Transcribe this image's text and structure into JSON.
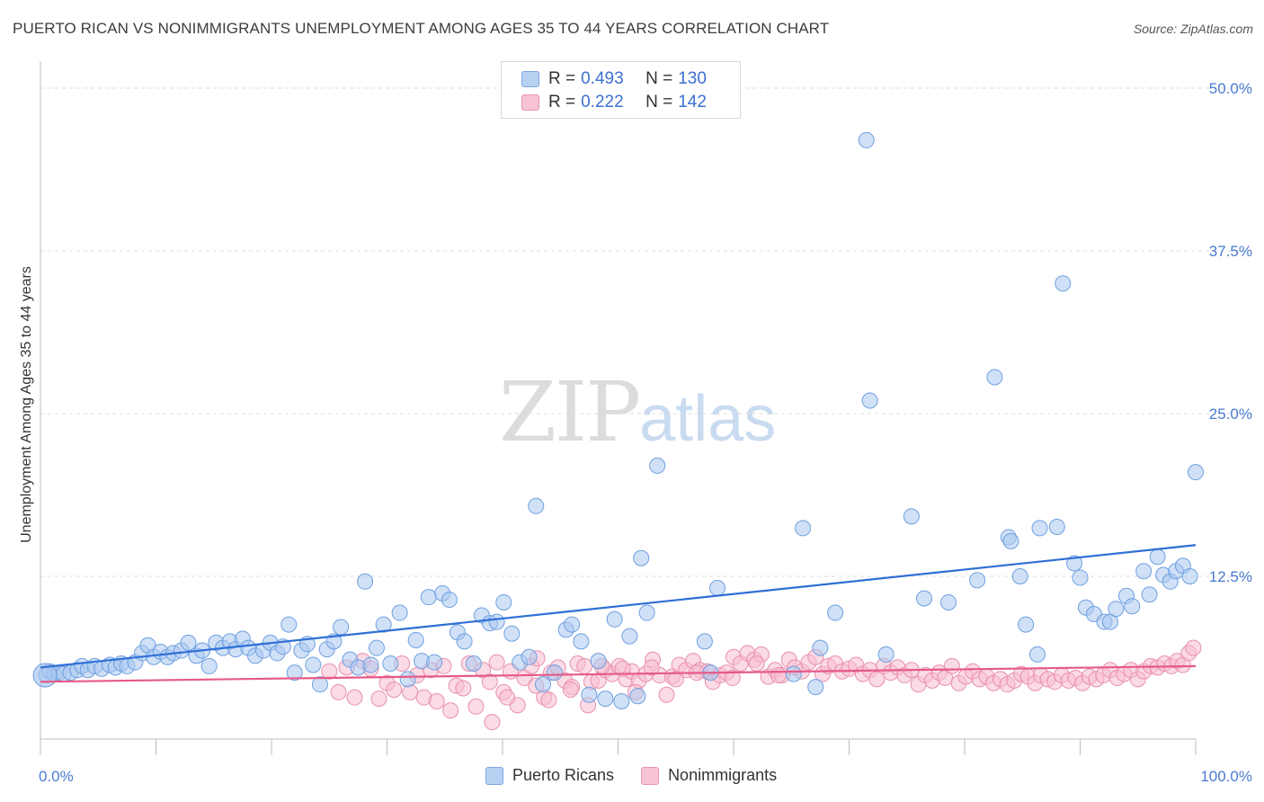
{
  "title": "PUERTO RICAN VS NONIMMIGRANTS UNEMPLOYMENT AMONG AGES 35 TO 44 YEARS CORRELATION CHART",
  "source": "Source: ZipAtlas.com",
  "watermark": {
    "zip": "ZIP",
    "atlas": "atlas"
  },
  "legend": {
    "r_label": "R =",
    "n_label": "N =",
    "items": [
      {
        "name": "Puerto Ricans",
        "r": "0.493",
        "n": "130",
        "fill": "#b8d1f3",
        "stroke": "#7ea6e0"
      },
      {
        "name": "Nonimmigrants",
        "r": "0.222",
        "n": "142",
        "fill": "#f8c3d3",
        "stroke": "#e995b0"
      }
    ]
  },
  "chart_data": {
    "type": "scatter",
    "title": "PUERTO RICAN VS NONIMMIGRANTS UNEMPLOYMENT AMONG AGES 35 TO 44 YEARS CORRELATION CHART",
    "xlabel": "",
    "ylabel": "Unemployment Among Ages 35 to 44 years",
    "xlim": [
      0,
      100
    ],
    "ylim": [
      0,
      50
    ],
    "x_tick_labels": [
      "0.0%",
      "100.0%"
    ],
    "y_ticks": [
      12.5,
      25.0,
      37.5,
      50.0
    ],
    "y_tick_labels": [
      "12.5%",
      "25.0%",
      "37.5%",
      "50.0%"
    ],
    "grid": true,
    "legend_position": "top-center",
    "series": [
      {
        "name": "Puerto Ricans",
        "color": "#6a9ee6",
        "trend": [
          [
            0,
            5.5
          ],
          [
            100,
            14.9
          ]
        ],
        "points": [
          [
            0.5,
            4.9
          ],
          [
            0.8,
            5.2
          ],
          [
            1.2,
            5.0
          ],
          [
            1.6,
            5.1
          ],
          [
            2.0,
            5.0
          ],
          [
            2.6,
            5.1
          ],
          [
            3.2,
            5.3
          ],
          [
            3.6,
            5.6
          ],
          [
            4.1,
            5.3
          ],
          [
            4.7,
            5.6
          ],
          [
            5.3,
            5.4
          ],
          [
            6.0,
            5.7
          ],
          [
            6.5,
            5.5
          ],
          [
            7.0,
            5.8
          ],
          [
            7.5,
            5.6
          ],
          [
            8.2,
            5.9
          ],
          [
            8.8,
            6.6
          ],
          [
            9.3,
            7.2
          ],
          [
            9.8,
            6.3
          ],
          [
            10.4,
            6.7
          ],
          [
            11.0,
            6.3
          ],
          [
            11.5,
            6.6
          ],
          [
            12.2,
            6.8
          ],
          [
            12.8,
            7.4
          ],
          [
            13.5,
            6.4
          ],
          [
            14.0,
            6.8
          ],
          [
            14.6,
            5.6
          ],
          [
            15.2,
            7.4
          ],
          [
            15.8,
            7.0
          ],
          [
            16.4,
            7.5
          ],
          [
            16.9,
            6.9
          ],
          [
            17.5,
            7.7
          ],
          [
            18.0,
            7.0
          ],
          [
            18.6,
            6.4
          ],
          [
            19.3,
            6.8
          ],
          [
            19.9,
            7.4
          ],
          [
            20.5,
            6.6
          ],
          [
            21.0,
            7.1
          ],
          [
            21.5,
            8.8
          ],
          [
            22.0,
            5.1
          ],
          [
            22.6,
            6.8
          ],
          [
            23.1,
            7.3
          ],
          [
            23.6,
            5.7
          ],
          [
            24.2,
            4.2
          ],
          [
            24.8,
            6.9
          ],
          [
            25.4,
            7.5
          ],
          [
            26.0,
            8.6
          ],
          [
            26.8,
            6.1
          ],
          [
            27.5,
            5.5
          ],
          [
            28.1,
            12.1
          ],
          [
            28.6,
            5.7
          ],
          [
            29.1,
            7.0
          ],
          [
            29.7,
            8.8
          ],
          [
            30.3,
            5.8
          ],
          [
            31.1,
            9.7
          ],
          [
            31.8,
            4.6
          ],
          [
            32.5,
            7.6
          ],
          [
            33.0,
            6.0
          ],
          [
            33.6,
            10.9
          ],
          [
            34.1,
            5.9
          ],
          [
            34.8,
            11.2
          ],
          [
            35.4,
            10.7
          ],
          [
            36.1,
            8.2
          ],
          [
            36.7,
            7.5
          ],
          [
            37.5,
            5.8
          ],
          [
            38.2,
            9.5
          ],
          [
            38.9,
            8.9
          ],
          [
            39.5,
            9.0
          ],
          [
            40.1,
            10.5
          ],
          [
            40.8,
            8.1
          ],
          [
            41.5,
            5.9
          ],
          [
            42.3,
            6.3
          ],
          [
            42.9,
            17.9
          ],
          [
            43.5,
            4.2
          ],
          [
            44.5,
            5.1
          ],
          [
            45.5,
            8.4
          ],
          [
            46.0,
            8.8
          ],
          [
            46.8,
            7.5
          ],
          [
            47.5,
            3.4
          ],
          [
            48.3,
            6.0
          ],
          [
            48.9,
            3.1
          ],
          [
            49.7,
            9.2
          ],
          [
            50.3,
            2.9
          ],
          [
            51.0,
            7.9
          ],
          [
            51.7,
            3.3
          ],
          [
            52.0,
            13.9
          ],
          [
            52.5,
            9.7
          ],
          [
            53.4,
            21.0
          ],
          [
            57.5,
            7.5
          ],
          [
            58.0,
            5.1
          ],
          [
            58.6,
            11.6
          ],
          [
            65.2,
            5.0
          ],
          [
            66.0,
            16.2
          ],
          [
            67.1,
            4.0
          ],
          [
            67.5,
            7.0
          ],
          [
            68.8,
            9.7
          ],
          [
            71.5,
            46.0
          ],
          [
            71.8,
            26.0
          ],
          [
            73.2,
            6.5
          ],
          [
            75.4,
            17.1
          ],
          [
            76.5,
            10.8
          ],
          [
            78.6,
            10.5
          ],
          [
            81.1,
            12.2
          ],
          [
            82.6,
            27.8
          ],
          [
            83.8,
            15.5
          ],
          [
            84.0,
            15.2
          ],
          [
            84.8,
            12.5
          ],
          [
            85.3,
            8.8
          ],
          [
            86.3,
            6.5
          ],
          [
            86.5,
            16.2
          ],
          [
            88.0,
            16.3
          ],
          [
            88.5,
            35.0
          ],
          [
            89.5,
            13.5
          ],
          [
            90.0,
            12.4
          ],
          [
            90.5,
            10.1
          ],
          [
            91.2,
            9.6
          ],
          [
            92.1,
            9.0
          ],
          [
            92.6,
            9.0
          ],
          [
            93.1,
            10.0
          ],
          [
            94.0,
            11.0
          ],
          [
            94.5,
            10.2
          ],
          [
            95.5,
            12.9
          ],
          [
            96.0,
            11.1
          ],
          [
            96.7,
            14.0
          ],
          [
            97.2,
            12.6
          ],
          [
            97.8,
            12.1
          ],
          [
            98.3,
            12.9
          ],
          [
            98.9,
            13.3
          ],
          [
            99.5,
            12.5
          ],
          [
            100.0,
            20.5
          ]
        ]
      },
      {
        "name": "Nonimmigrants",
        "color": "#ec8fad",
        "trend": [
          [
            0,
            4.4
          ],
          [
            100,
            5.6
          ]
        ],
        "points": [
          [
            25.0,
            5.2
          ],
          [
            25.8,
            3.6
          ],
          [
            26.5,
            5.5
          ],
          [
            27.2,
            3.2
          ],
          [
            27.9,
            6.0
          ],
          [
            28.6,
            5.4
          ],
          [
            29.3,
            3.1
          ],
          [
            30.0,
            4.3
          ],
          [
            30.6,
            3.8
          ],
          [
            31.3,
            5.8
          ],
          [
            32.0,
            3.6
          ],
          [
            32.6,
            4.9
          ],
          [
            33.2,
            3.2
          ],
          [
            33.8,
            5.3
          ],
          [
            34.3,
            2.9
          ],
          [
            34.9,
            5.6
          ],
          [
            35.5,
            2.2
          ],
          [
            36.0,
            4.1
          ],
          [
            36.6,
            3.9
          ],
          [
            37.1,
            5.8
          ],
          [
            37.7,
            2.5
          ],
          [
            38.3,
            5.3
          ],
          [
            38.9,
            4.4
          ],
          [
            39.5,
            5.9
          ],
          [
            40.1,
            3.6
          ],
          [
            40.7,
            5.2
          ],
          [
            41.3,
            2.6
          ],
          [
            41.9,
            4.7
          ],
          [
            42.5,
            5.6
          ],
          [
            43.0,
            6.2
          ],
          [
            43.6,
            3.2
          ],
          [
            44.2,
            5.1
          ],
          [
            44.8,
            5.5
          ],
          [
            45.4,
            4.5
          ],
          [
            46.0,
            4.0
          ],
          [
            46.5,
            5.8
          ],
          [
            47.1,
            5.6
          ],
          [
            47.7,
            4.4
          ],
          [
            48.3,
            4.5
          ],
          [
            48.9,
            5.3
          ],
          [
            49.5,
            5.0
          ],
          [
            50.1,
            5.6
          ],
          [
            50.7,
            4.6
          ],
          [
            51.2,
            5.2
          ],
          [
            51.8,
            4.5
          ],
          [
            52.4,
            5.0
          ],
          [
            53.0,
            6.1
          ],
          [
            53.6,
            4.9
          ],
          [
            54.2,
            3.4
          ],
          [
            54.7,
            4.8
          ],
          [
            55.3,
            5.7
          ],
          [
            55.9,
            5.3
          ],
          [
            56.5,
            6.0
          ],
          [
            57.1,
            5.3
          ],
          [
            57.7,
            5.2
          ],
          [
            58.2,
            4.4
          ],
          [
            58.8,
            4.9
          ],
          [
            59.4,
            5.1
          ],
          [
            60.0,
            6.3
          ],
          [
            60.6,
            5.8
          ],
          [
            61.2,
            6.6
          ],
          [
            61.8,
            6.1
          ],
          [
            62.4,
            6.5
          ],
          [
            63.0,
            4.8
          ],
          [
            63.6,
            5.3
          ],
          [
            64.2,
            4.9
          ],
          [
            64.8,
            6.1
          ],
          [
            65.3,
            5.5
          ],
          [
            65.9,
            5.2
          ],
          [
            66.5,
            5.9
          ],
          [
            67.1,
            6.3
          ],
          [
            67.7,
            5.0
          ],
          [
            68.2,
            5.6
          ],
          [
            68.8,
            5.8
          ],
          [
            69.4,
            5.2
          ],
          [
            70.0,
            5.4
          ],
          [
            70.6,
            5.7
          ],
          [
            71.2,
            5.0
          ],
          [
            71.8,
            5.3
          ],
          [
            72.4,
            4.6
          ],
          [
            73.0,
            5.6
          ],
          [
            73.6,
            5.1
          ],
          [
            74.2,
            5.5
          ],
          [
            74.8,
            4.9
          ],
          [
            75.4,
            5.3
          ],
          [
            76.0,
            4.2
          ],
          [
            76.6,
            4.9
          ],
          [
            77.2,
            4.5
          ],
          [
            77.8,
            5.1
          ],
          [
            78.3,
            4.7
          ],
          [
            78.9,
            5.6
          ],
          [
            79.5,
            4.3
          ],
          [
            80.1,
            4.8
          ],
          [
            80.7,
            5.2
          ],
          [
            81.3,
            4.6
          ],
          [
            81.9,
            4.8
          ],
          [
            82.5,
            4.3
          ],
          [
            83.1,
            4.6
          ],
          [
            83.7,
            4.2
          ],
          [
            84.3,
            4.5
          ],
          [
            84.9,
            5.0
          ],
          [
            85.5,
            4.8
          ],
          [
            86.1,
            4.3
          ],
          [
            86.6,
            4.9
          ],
          [
            87.2,
            4.6
          ],
          [
            87.8,
            4.4
          ],
          [
            88.4,
            4.9
          ],
          [
            89.0,
            4.5
          ],
          [
            89.6,
            4.7
          ],
          [
            90.2,
            4.3
          ],
          [
            90.8,
            4.8
          ],
          [
            91.4,
            4.6
          ],
          [
            92.0,
            4.9
          ],
          [
            92.6,
            5.3
          ],
          [
            93.2,
            4.7
          ],
          [
            93.8,
            5.0
          ],
          [
            94.4,
            5.3
          ],
          [
            95.0,
            4.6
          ],
          [
            95.5,
            5.2
          ],
          [
            96.1,
            5.6
          ],
          [
            96.7,
            5.5
          ],
          [
            97.3,
            5.8
          ],
          [
            97.9,
            5.6
          ],
          [
            98.4,
            6.0
          ],
          [
            98.9,
            5.7
          ],
          [
            99.4,
            6.6
          ],
          [
            99.8,
            7.0
          ],
          [
            39.1,
            1.3
          ],
          [
            40.4,
            3.2
          ],
          [
            42.9,
            4.1
          ],
          [
            44.0,
            3.0
          ],
          [
            45.9,
            3.8
          ],
          [
            47.4,
            2.6
          ],
          [
            48.6,
            5.6
          ],
          [
            50.4,
            5.4
          ],
          [
            51.5,
            3.6
          ],
          [
            52.9,
            5.5
          ],
          [
            55.0,
            4.6
          ],
          [
            56.8,
            5.1
          ],
          [
            59.9,
            4.7
          ],
          [
            62.0,
            5.8
          ],
          [
            63.9,
            4.9
          ]
        ]
      }
    ]
  }
}
